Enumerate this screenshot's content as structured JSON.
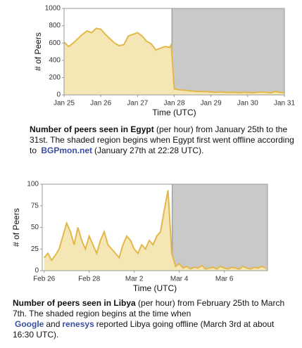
{
  "chart_data": [
    {
      "type": "line",
      "y_label": "# of Peers",
      "x_label": "Time (UTC)",
      "x": [
        0,
        3,
        6,
        9,
        12,
        15,
        18,
        21,
        24,
        27,
        30,
        33,
        36,
        39,
        42,
        45,
        48,
        51,
        54,
        57,
        60,
        63,
        66,
        69,
        70,
        72,
        75,
        78,
        81,
        84,
        87,
        90,
        93,
        96,
        99,
        102,
        105,
        108,
        111,
        114,
        117,
        120,
        123,
        126,
        129,
        132,
        135,
        138,
        141,
        144
      ],
      "series": [
        {
          "name": "Egypt",
          "color": "#e3b84a",
          "fill": "#f5e6b5",
          "values": [
            610,
            560,
            600,
            650,
            700,
            740,
            720,
            770,
            760,
            700,
            650,
            600,
            570,
            580,
            680,
            700,
            720,
            680,
            620,
            590,
            520,
            540,
            560,
            550,
            580,
            70,
            60,
            55,
            50,
            45,
            40,
            40,
            38,
            35,
            30,
            35,
            30,
            28,
            30,
            25,
            30,
            28,
            25,
            30,
            35,
            30,
            25,
            40,
            30,
            25
          ]
        }
      ],
      "xlim": [
        0,
        144
      ],
      "xticks": [
        {
          "value": 0,
          "label": "Jan 25"
        },
        {
          "value": 24,
          "label": "Jan 26"
        },
        {
          "value": 48,
          "label": "Jan 27"
        },
        {
          "value": 72,
          "label": "Jan 28"
        },
        {
          "value": 96,
          "label": "Jan 29"
        },
        {
          "value": 120,
          "label": "Jan 30"
        },
        {
          "value": 144,
          "label": "Jan 31"
        }
      ],
      "ylim": [
        0,
        1000
      ],
      "yticks": [
        0,
        200,
        400,
        600,
        800,
        1000
      ],
      "shade_from": 70.47,
      "caption": [
        {
          "style": "bold",
          "text": "Number of peers seen in Egypt"
        },
        {
          "style": "plain",
          "text": " (per hour) from January 25th to the 31st. The shaded region begins when Egypt first went offline according to "
        },
        {
          "style": "link",
          "text": "BGPmon.net"
        },
        {
          "style": "plain",
          "text": "(January 27th at 22:28 UTC)."
        }
      ]
    },
    {
      "type": "line",
      "y_label": "# of Peers",
      "x_label": "Time (UTC)",
      "x": [
        0,
        4,
        8,
        12,
        16,
        20,
        24,
        28,
        32,
        36,
        40,
        44,
        48,
        52,
        56,
        60,
        64,
        68,
        72,
        76,
        80,
        84,
        88,
        92,
        96,
        100,
        104,
        108,
        112,
        116,
        120,
        124,
        128,
        132,
        136,
        140,
        144,
        148,
        152,
        156,
        160,
        164,
        168,
        172,
        176,
        180,
        184,
        188,
        192,
        196,
        200,
        204,
        208,
        212,
        216,
        220,
        224,
        228,
        232,
        236
      ],
      "series": [
        {
          "name": "Libya",
          "color": "#e3b84a",
          "fill": "#f5e6b5",
          "values": [
            15,
            20,
            12,
            18,
            25,
            40,
            55,
            45,
            30,
            50,
            35,
            25,
            40,
            30,
            20,
            35,
            45,
            30,
            25,
            20,
            15,
            30,
            40,
            35,
            25,
            20,
            30,
            25,
            35,
            30,
            40,
            45,
            70,
            93,
            20,
            5,
            8,
            3,
            5,
            2,
            4,
            3,
            6,
            2,
            3,
            4,
            2,
            5,
            3,
            2,
            4,
            3,
            2,
            5,
            3,
            2,
            4,
            3,
            5,
            3
          ]
        }
      ],
      "xlim": [
        -2,
        238
      ],
      "xticks": [
        {
          "value": 0,
          "label": "Feb 26"
        },
        {
          "value": 48,
          "label": "Feb 28"
        },
        {
          "value": 96,
          "label": "Mar 2"
        },
        {
          "value": 144,
          "label": "Mar 4"
        },
        {
          "value": 192,
          "label": "Mar 6"
        }
      ],
      "ylim": [
        0,
        100
      ],
      "yticks": [
        0,
        25,
        50,
        75,
        100
      ],
      "shade_from": 136.5,
      "caption": [
        {
          "style": "bold",
          "text": "Number of peers seen in Libya"
        },
        {
          "style": "plain",
          "text": " (per hour) from February 25th to March 7th. The shaded region begins at the time when "
        },
        {
          "style": "link",
          "text": "Google"
        },
        {
          "style": "plain",
          "text": "and"
        },
        {
          "style": "link",
          "text": "renesys"
        },
        {
          "style": "plain",
          "text": "reported Libya going offline (March 3rd at about 16:30 UTC)."
        }
      ]
    }
  ]
}
